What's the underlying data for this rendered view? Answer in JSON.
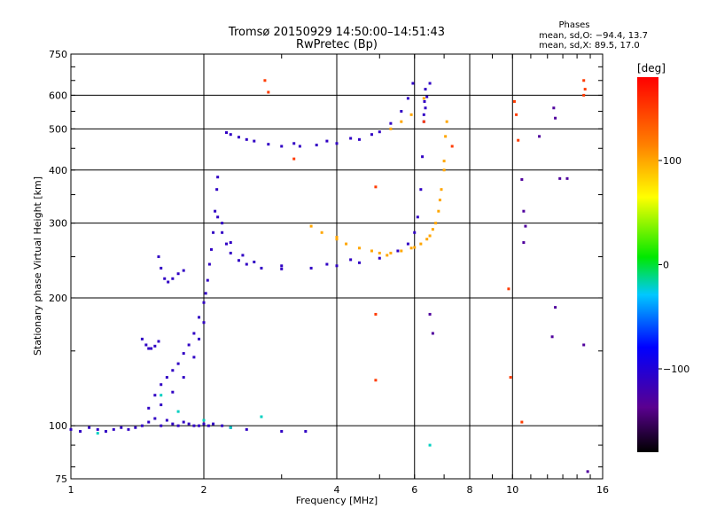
{
  "chart_data": {
    "type": "scatter",
    "title": "Tromsø 20150929 14:50:00–14:51:43",
    "subtitle": "RwPretec (Bp)",
    "xlabel": "Frequency [MHz]",
    "ylabel": "Stationary phase Virtual Height [km]",
    "x_scale": "log",
    "y_scale": "log",
    "xlim": [
      1,
      16
    ],
    "ylim": [
      75,
      750
    ],
    "x_ticks": [
      1,
      2,
      4,
      6,
      8,
      10,
      16
    ],
    "y_ticks": [
      75,
      100,
      200,
      300,
      400,
      500,
      600,
      750
    ],
    "grid": true,
    "phases_box": {
      "title": "Phases",
      "line_o": "mean, sd,O: −94.4, 13.7",
      "line_x": "mean, sd,X:  89.5, 17.0"
    },
    "colorbar": {
      "title": "[deg]",
      "range": [
        -180,
        180
      ],
      "ticks": [
        -100,
        0,
        100
      ]
    },
    "series": [
      {
        "name": "",
        "phase": -110,
        "points": [
          [
            1.0,
            98
          ],
          [
            1.05,
            97
          ],
          [
            1.1,
            99
          ],
          [
            1.15,
            98
          ],
          [
            1.2,
            97
          ],
          [
            1.25,
            98
          ],
          [
            1.3,
            99
          ],
          [
            1.35,
            98
          ],
          [
            1.4,
            99
          ],
          [
            1.45,
            100
          ],
          [
            1.5,
            102
          ],
          [
            1.55,
            104
          ],
          [
            1.6,
            100
          ],
          [
            1.65,
            103
          ],
          [
            1.7,
            101
          ],
          [
            1.75,
            100
          ],
          [
            1.8,
            102
          ],
          [
            1.85,
            101
          ],
          [
            1.9,
            100
          ],
          [
            1.95,
            100
          ],
          [
            2.0,
            101
          ],
          [
            2.05,
            100
          ],
          [
            2.1,
            101
          ],
          [
            2.2,
            100
          ],
          [
            2.3,
            99
          ],
          [
            2.5,
            98
          ],
          [
            3.0,
            97
          ],
          [
            3.4,
            97
          ],
          [
            1.5,
            110
          ],
          [
            1.55,
            118
          ],
          [
            1.6,
            125
          ],
          [
            1.65,
            130
          ],
          [
            1.7,
            135
          ],
          [
            1.75,
            140
          ],
          [
            1.8,
            148
          ],
          [
            1.85,
            155
          ],
          [
            1.9,
            165
          ],
          [
            1.95,
            180
          ],
          [
            2.0,
            195
          ],
          [
            2.02,
            205
          ],
          [
            2.04,
            220
          ],
          [
            2.06,
            240
          ],
          [
            2.08,
            260
          ],
          [
            2.1,
            285
          ],
          [
            2.12,
            320
          ],
          [
            2.14,
            360
          ],
          [
            2.15,
            385
          ],
          [
            1.6,
            112
          ],
          [
            1.7,
            120
          ],
          [
            1.8,
            130
          ],
          [
            1.9,
            145
          ],
          [
            1.95,
            160
          ],
          [
            2.0,
            175
          ],
          [
            1.45,
            160
          ],
          [
            1.48,
            155
          ],
          [
            1.5,
            152
          ],
          [
            1.52,
            152
          ],
          [
            1.55,
            154
          ],
          [
            1.58,
            158
          ],
          [
            1.58,
            250
          ],
          [
            1.6,
            235
          ],
          [
            1.63,
            222
          ],
          [
            1.66,
            218
          ],
          [
            1.7,
            222
          ],
          [
            1.75,
            228
          ],
          [
            1.8,
            232
          ],
          [
            2.15,
            310
          ],
          [
            2.2,
            285
          ],
          [
            2.25,
            268
          ],
          [
            2.3,
            255
          ],
          [
            2.4,
            245
          ],
          [
            2.5,
            240
          ],
          [
            2.7,
            235
          ],
          [
            3.0,
            234
          ],
          [
            3.5,
            235
          ],
          [
            4.0,
            238
          ],
          [
            4.5,
            242
          ],
          [
            5.0,
            248
          ],
          [
            5.5,
            258
          ],
          [
            5.8,
            268
          ],
          [
            6.0,
            285
          ],
          [
            6.1,
            310
          ],
          [
            6.2,
            360
          ],
          [
            6.25,
            430
          ],
          [
            6.3,
            520
          ],
          [
            6.32,
            580
          ],
          [
            6.35,
            620
          ],
          [
            2.2,
            300
          ],
          [
            2.3,
            270
          ],
          [
            2.45,
            252
          ],
          [
            2.6,
            243
          ],
          [
            3.0,
            238
          ],
          [
            3.8,
            240
          ],
          [
            4.3,
            246
          ],
          [
            2.25,
            490
          ],
          [
            2.4,
            478
          ],
          [
            2.6,
            468
          ],
          [
            2.8,
            460
          ],
          [
            3.0,
            455
          ],
          [
            3.3,
            455
          ],
          [
            3.6,
            458
          ],
          [
            4.0,
            462
          ],
          [
            4.5,
            472
          ],
          [
            5.0,
            492
          ],
          [
            5.3,
            515
          ],
          [
            5.6,
            550
          ],
          [
            5.8,
            590
          ],
          [
            5.95,
            640
          ],
          [
            2.3,
            485
          ],
          [
            2.5,
            472
          ],
          [
            3.2,
            462
          ],
          [
            3.8,
            468
          ],
          [
            4.3,
            475
          ],
          [
            4.8,
            485
          ],
          [
            6.3,
            540
          ],
          [
            6.35,
            560
          ],
          [
            6.4,
            595
          ],
          [
            6.5,
            640
          ]
        ]
      },
      {
        "name": "",
        "phase": 100,
        "points": [
          [
            4.0,
            275
          ],
          [
            4.2,
            268
          ],
          [
            4.5,
            262
          ],
          [
            4.8,
            258
          ],
          [
            5.0,
            255
          ],
          [
            5.3,
            255
          ],
          [
            5.6,
            258
          ],
          [
            5.9,
            262
          ],
          [
            6.2,
            268
          ],
          [
            6.4,
            275
          ],
          [
            6.6,
            290
          ],
          [
            6.8,
            320
          ],
          [
            6.9,
            360
          ],
          [
            7.0,
            420
          ],
          [
            7.05,
            480
          ],
          [
            7.1,
            520
          ],
          [
            3.5,
            295
          ],
          [
            3.7,
            285
          ],
          [
            4.0,
            278
          ],
          [
            5.2,
            252
          ],
          [
            6.0,
            263
          ],
          [
            6.5,
            280
          ],
          [
            6.7,
            300
          ],
          [
            6.85,
            340
          ],
          [
            7.0,
            400
          ],
          [
            5.3,
            500
          ],
          [
            5.6,
            520
          ],
          [
            5.9,
            540
          ],
          [
            6.3,
            590
          ]
        ]
      },
      {
        "name": "",
        "phase": -20,
        "points": [
          [
            1.6,
            118
          ],
          [
            1.75,
            108
          ],
          [
            2.0,
            103
          ],
          [
            2.3,
            99
          ],
          [
            1.15,
            96
          ],
          [
            2.7,
            105
          ],
          [
            6.5,
            90
          ]
        ]
      },
      {
        "name": "",
        "phase": 150,
        "points": [
          [
            2.75,
            650
          ],
          [
            2.8,
            610
          ],
          [
            3.2,
            425
          ],
          [
            4.9,
            365
          ],
          [
            4.9,
            183
          ],
          [
            4.9,
            128
          ],
          [
            9.8,
            210
          ],
          [
            9.9,
            130
          ],
          [
            10.1,
            580
          ],
          [
            10.2,
            540
          ],
          [
            10.3,
            470
          ],
          [
            14.5,
            650
          ],
          [
            14.6,
            620
          ],
          [
            14.5,
            600
          ],
          [
            6.3,
            520
          ],
          [
            7.3,
            455
          ],
          [
            10.5,
            102
          ]
        ]
      },
      {
        "name": "",
        "phase": -130,
        "points": [
          [
            10.5,
            380
          ],
          [
            10.6,
            320
          ],
          [
            10.7,
            295
          ],
          [
            10.6,
            270
          ],
          [
            12.5,
            530
          ],
          [
            12.8,
            382
          ],
          [
            12.5,
            190
          ],
          [
            12.3,
            162
          ],
          [
            14.5,
            155
          ],
          [
            14.8,
            78
          ],
          [
            11.5,
            480
          ],
          [
            12.4,
            560
          ],
          [
            13.3,
            382
          ],
          [
            6.5,
            183
          ],
          [
            6.6,
            165
          ]
        ]
      }
    ]
  }
}
